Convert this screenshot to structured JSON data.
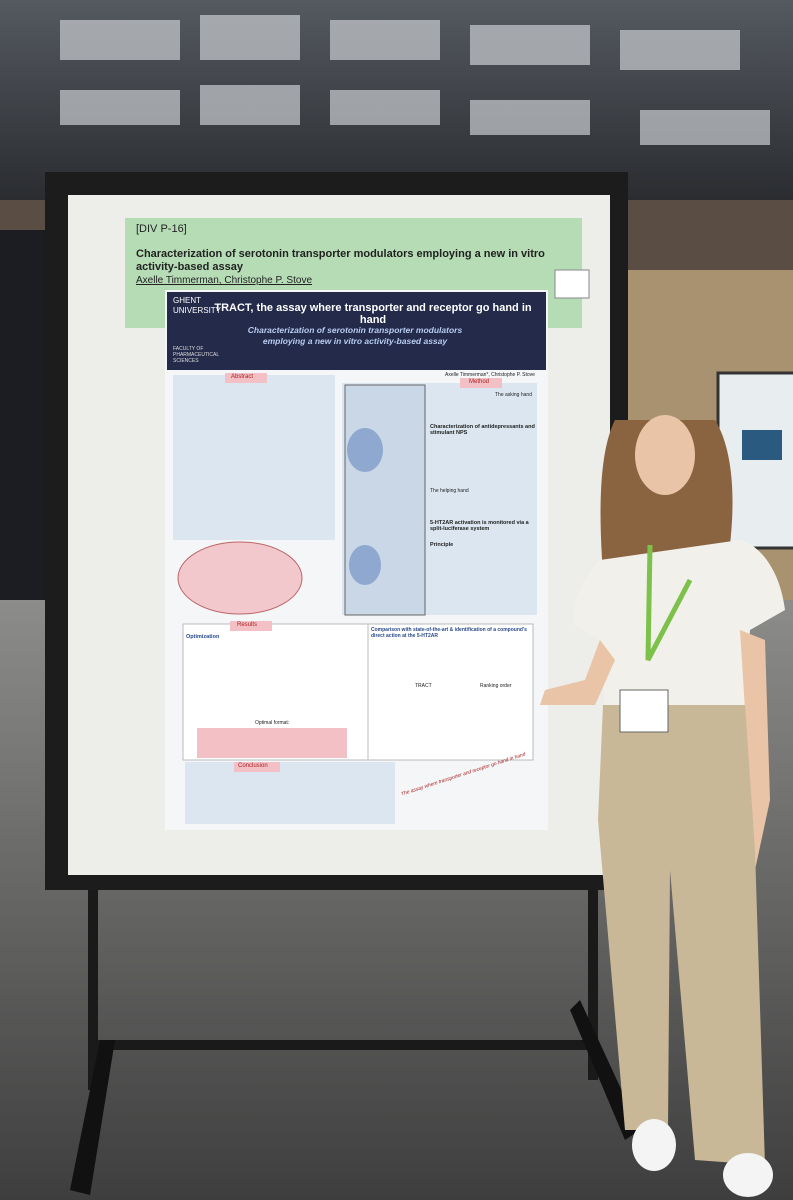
{
  "header": {
    "code": "[DIV P-16]",
    "title": "Characterization of serotonin transporter modulators employing a new in vitro activity-based assay",
    "authors": "Axelle Timmerman, Christophe P. Stove"
  },
  "poster": {
    "logo": "GHENT UNIVERSITY",
    "faculty": "FACULTY OF PHARMACEUTICAL SCIENCES",
    "banner_title": "TRACT, the assay where transporter and receptor go hand in hand",
    "banner_subtitle": "Characterization of serotonin transporter modulators employing a new in vitro activity-based assay",
    "authors": "Axelle Timmerman*, Christophe P. Stove",
    "sections": {
      "abstract": "Abstract",
      "method": "Method",
      "results": "Results",
      "conclusion": "Conclusion"
    },
    "method": {
      "asking": "The asking hand",
      "target": "Characterization of antidepressants and stimulant NPS",
      "helping": "The helping hand",
      "readout": "5-HT2AR activation is monitored via a split-luciferase system",
      "principle": "Principle"
    },
    "results": {
      "optimization": "Optimization",
      "comparison": "Comparison with state-of-the-art & identification of a compound's direct action at the 5-HT2AR",
      "optimal": "Optimal format:",
      "tract": "TRACT",
      "ranking": "Ranking order"
    },
    "footer": "The assay where transporter and receptor go hand in hand"
  }
}
